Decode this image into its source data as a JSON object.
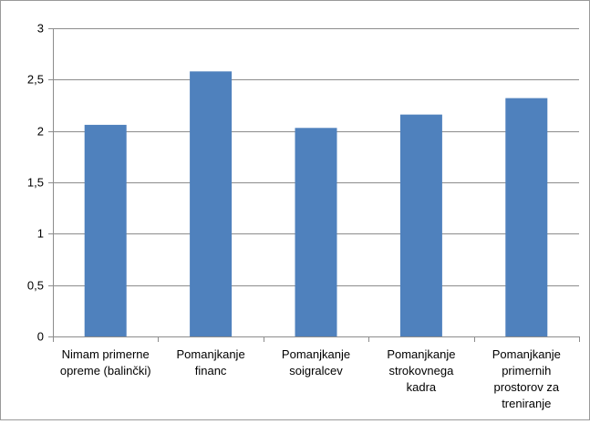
{
  "chart_data": {
    "type": "bar",
    "categories": [
      [
        "Nimam primerne",
        "opreme (balinčki)"
      ],
      [
        "Pomanjkanje",
        "financ"
      ],
      [
        "Pomanjkanje",
        "soigralcev"
      ],
      [
        "Pomanjkanje",
        "strokovnega",
        "kadra"
      ],
      [
        "Pomanjkanje",
        "primernih",
        "prostorov za",
        "treniranje"
      ]
    ],
    "values": [
      2.06,
      2.58,
      2.03,
      2.16,
      2.32
    ],
    "ylim": [
      0,
      3
    ],
    "ytick_values": [
      0,
      0.5,
      1,
      1.5,
      2,
      2.5,
      3
    ],
    "ytick_labels": [
      "0",
      "0,5",
      "1",
      "1,5",
      "2",
      "2,5",
      "3"
    ],
    "grid": true,
    "bar_color": "#4f81bd",
    "grid_color": "#8c8c8c"
  }
}
